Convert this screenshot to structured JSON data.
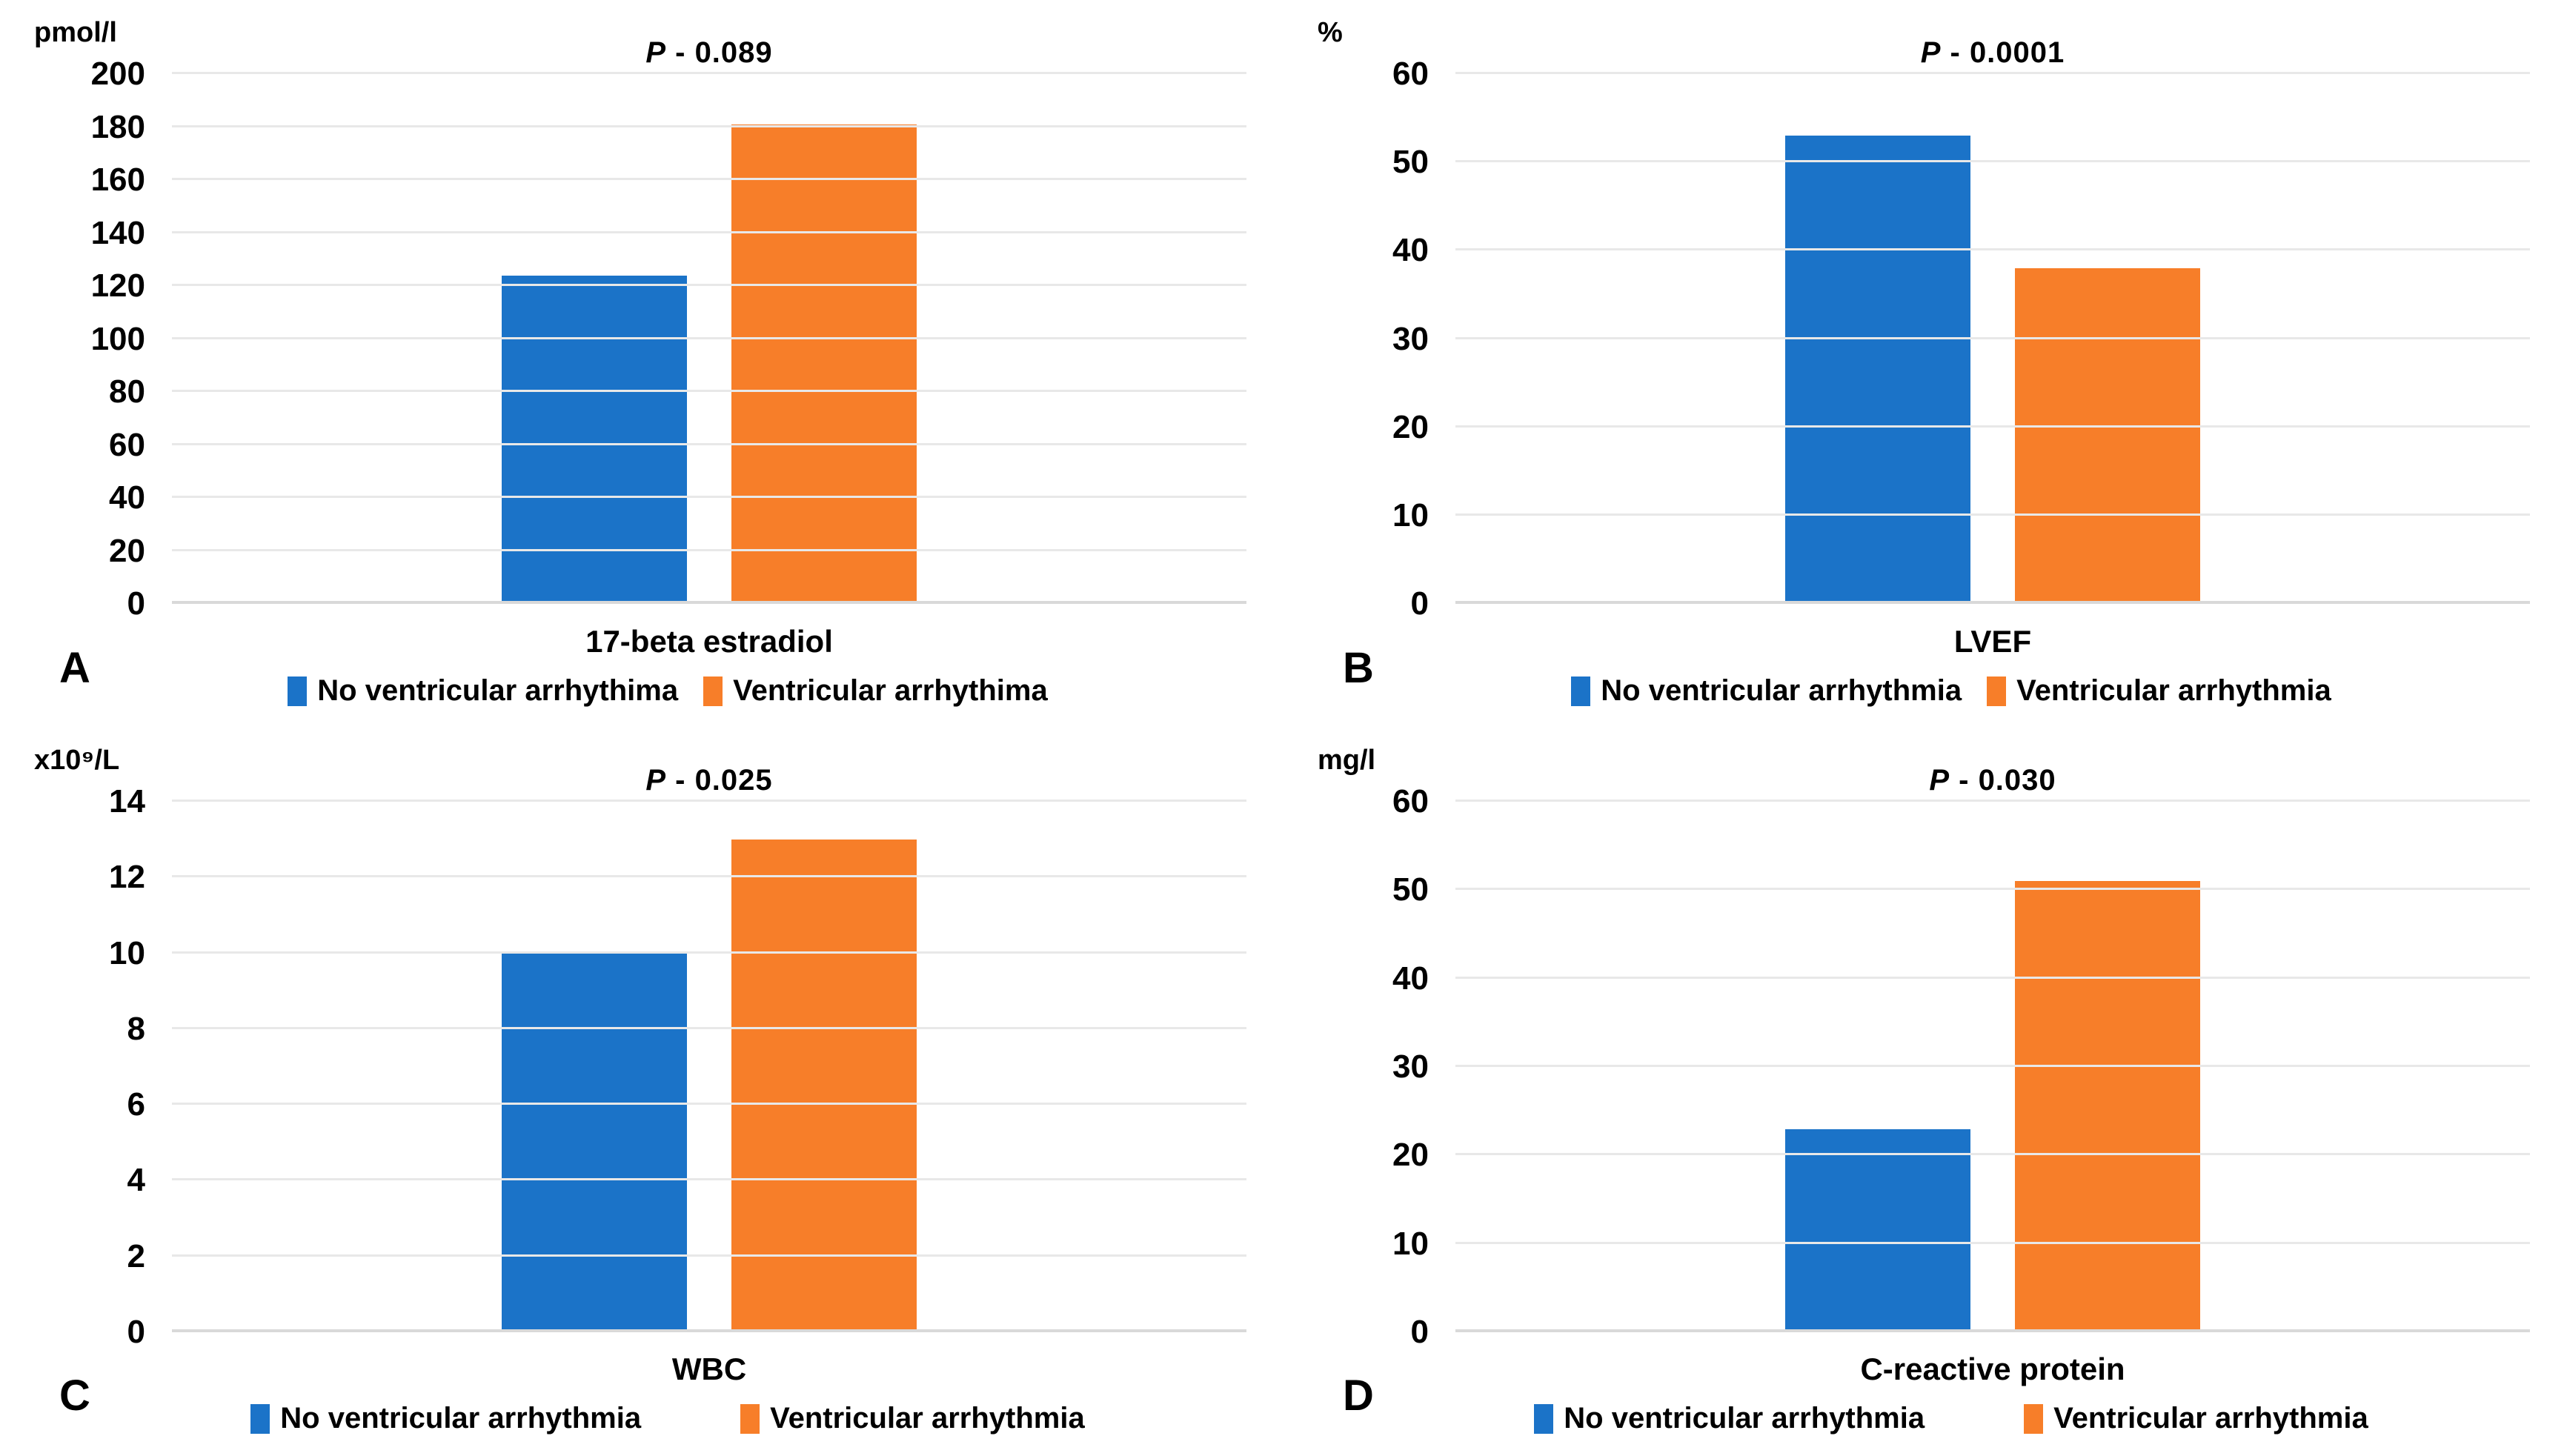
{
  "chart_data": [
    {
      "type": "bar",
      "panel_letter": "A",
      "title": "P - 0.089",
      "ylabel": "pmol/l",
      "categories": [
        "17-beta estradiol"
      ],
      "series": [
        {
          "name": "No ventricular arrhythima",
          "color": "#1B73C8",
          "values": [
            124
          ]
        },
        {
          "name": "Ventricular arrhythima",
          "color": "#F77E29",
          "values": [
            181
          ]
        }
      ],
      "ylim": [
        0,
        200
      ],
      "yticks": [
        0,
        20,
        40,
        60,
        80,
        100,
        120,
        140,
        160,
        180,
        200
      ],
      "grid": true,
      "legend_position": "bottom",
      "legend_spacing": "narrow"
    },
    {
      "type": "bar",
      "panel_letter": "B",
      "title": "P - 0.0001",
      "ylabel": "%",
      "categories": [
        "LVEF"
      ],
      "series": [
        {
          "name": "No ventricular arrhythmia",
          "color": "#1B73C8",
          "values": [
            53
          ]
        },
        {
          "name": "Ventricular arrhythmia",
          "color": "#F77E29",
          "values": [
            38
          ]
        }
      ],
      "ylim": [
        0,
        60
      ],
      "yticks": [
        0,
        10,
        20,
        30,
        40,
        50,
        60
      ],
      "grid": true,
      "legend_position": "bottom",
      "legend_spacing": "narrow"
    },
    {
      "type": "bar",
      "panel_letter": "C",
      "title": "P - 0.025",
      "ylabel": "x10⁹/L",
      "categories": [
        "WBC"
      ],
      "series": [
        {
          "name": "No ventricular arrhythmia",
          "color": "#1B73C8",
          "values": [
            10
          ]
        },
        {
          "name": "Ventricular arrhythmia",
          "color": "#F77E29",
          "values": [
            13
          ]
        }
      ],
      "ylim": [
        0,
        14
      ],
      "yticks": [
        0,
        2,
        4,
        6,
        8,
        10,
        12,
        14
      ],
      "grid": true,
      "legend_position": "bottom",
      "legend_spacing": "wide"
    },
    {
      "type": "bar",
      "panel_letter": "D",
      "title": "P - 0.030",
      "ylabel": "mg/l",
      "categories": [
        "C-reactive protein"
      ],
      "series": [
        {
          "name": "No ventricular arrhythmia",
          "color": "#1B73C8",
          "values": [
            23
          ]
        },
        {
          "name": "Ventricular arrhythmia",
          "color": "#F77E29",
          "values": [
            51
          ]
        }
      ],
      "ylim": [
        0,
        60
      ],
      "yticks": [
        0,
        10,
        20,
        30,
        40,
        50,
        60
      ],
      "grid": true,
      "legend_position": "bottom",
      "legend_spacing": "wide"
    }
  ]
}
